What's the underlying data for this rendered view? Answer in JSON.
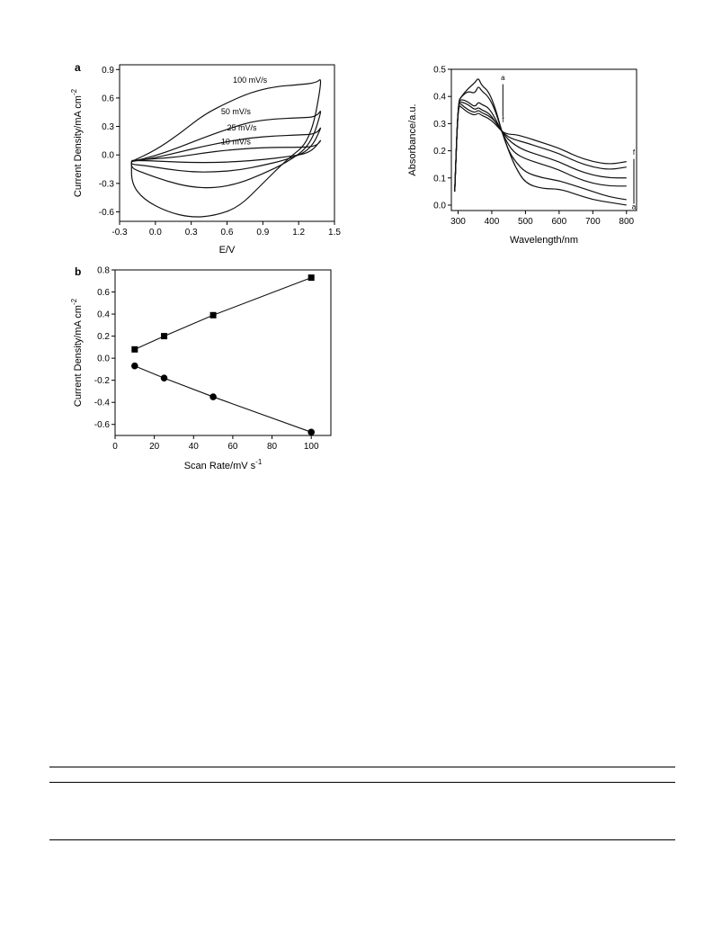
{
  "chart_data": [
    {
      "type": "line",
      "panel_label": "a",
      "xlabel": "E/V",
      "ylabel": "Current Density/mA cm",
      "ylabel_sup": "-2",
      "xlim": [
        -0.3,
        1.5
      ],
      "ylim": [
        -0.7,
        0.95
      ],
      "xticks": [
        -0.3,
        0.0,
        0.3,
        0.6,
        0.9,
        1.2,
        1.5
      ],
      "yticks": [
        -0.6,
        -0.3,
        0.0,
        0.3,
        0.6,
        0.9
      ],
      "xtick_labels": [
        "-0.3",
        "0.0",
        "0.3",
        "0.6",
        "0.9",
        "1.2",
        "1.5"
      ],
      "ytick_labels": [
        "-0.6",
        "-0.3",
        "0.0",
        "0.3",
        "0.6",
        "0.9"
      ],
      "series": [
        {
          "name": "100 mV/s",
          "upper": [
            [
              -0.2,
              -0.07
            ],
            [
              0.0,
              0.05
            ],
            [
              0.2,
              0.22
            ],
            [
              0.4,
              0.42
            ],
            [
              0.6,
              0.55
            ],
            [
              0.8,
              0.66
            ],
            [
              1.0,
              0.72
            ],
            [
              1.2,
              0.74
            ],
            [
              1.35,
              0.76
            ],
            [
              1.4,
              0.82
            ]
          ],
          "lower": [
            [
              1.4,
              0.82
            ],
            [
              1.3,
              0.15
            ],
            [
              1.1,
              -0.05
            ],
            [
              0.9,
              -0.3
            ],
            [
              0.7,
              -0.55
            ],
            [
              0.5,
              -0.64
            ],
            [
              0.3,
              -0.66
            ],
            [
              0.1,
              -0.6
            ],
            [
              -0.1,
              -0.47
            ],
            [
              -0.2,
              -0.3
            ]
          ]
        },
        {
          "name": "50 mV/s",
          "upper": [
            [
              -0.2,
              -0.07
            ],
            [
              0.0,
              -0.01
            ],
            [
              0.2,
              0.08
            ],
            [
              0.4,
              0.18
            ],
            [
              0.6,
              0.27
            ],
            [
              0.8,
              0.35
            ],
            [
              1.0,
              0.38
            ],
            [
              1.2,
              0.39
            ],
            [
              1.35,
              0.4
            ],
            [
              1.4,
              0.5
            ]
          ],
          "lower": [
            [
              1.4,
              0.5
            ],
            [
              1.3,
              0.1
            ],
            [
              1.1,
              -0.08
            ],
            [
              0.9,
              -0.2
            ],
            [
              0.7,
              -0.3
            ],
            [
              0.5,
              -0.35
            ],
            [
              0.3,
              -0.34
            ],
            [
              0.1,
              -0.28
            ],
            [
              -0.1,
              -0.19
            ],
            [
              -0.2,
              -0.14
            ]
          ]
        },
        {
          "name": "25 mV/s",
          "upper": [
            [
              -0.2,
              -0.07
            ],
            [
              0.0,
              -0.03
            ],
            [
              0.2,
              0.03
            ],
            [
              0.4,
              0.09
            ],
            [
              0.6,
              0.14
            ],
            [
              0.8,
              0.18
            ],
            [
              1.0,
              0.2
            ],
            [
              1.2,
              0.21
            ],
            [
              1.35,
              0.22
            ],
            [
              1.4,
              0.32
            ]
          ],
          "lower": [
            [
              1.4,
              0.32
            ],
            [
              1.3,
              0.05
            ],
            [
              1.1,
              -0.05
            ],
            [
              0.9,
              -0.11
            ],
            [
              0.7,
              -0.16
            ],
            [
              0.5,
              -0.18
            ],
            [
              0.3,
              -0.18
            ],
            [
              0.1,
              -0.15
            ],
            [
              -0.1,
              -0.11
            ],
            [
              -0.2,
              -0.1
            ]
          ]
        },
        {
          "name": "10 mV/s",
          "upper": [
            [
              -0.2,
              -0.06
            ],
            [
              0.0,
              -0.04
            ],
            [
              0.2,
              -0.02
            ],
            [
              0.4,
              0.02
            ],
            [
              0.6,
              0.05
            ],
            [
              0.8,
              0.07
            ],
            [
              1.0,
              0.08
            ],
            [
              1.2,
              0.08
            ],
            [
              1.35,
              0.09
            ],
            [
              1.4,
              0.18
            ]
          ],
          "lower": [
            [
              1.4,
              0.18
            ],
            [
              1.3,
              0.02
            ],
            [
              1.1,
              -0.02
            ],
            [
              0.9,
              -0.05
            ],
            [
              0.7,
              -0.07
            ],
            [
              0.5,
              -0.08
            ],
            [
              0.3,
              -0.08
            ],
            [
              0.1,
              -0.07
            ],
            [
              -0.1,
              -0.06
            ],
            [
              -0.2,
              -0.06
            ]
          ]
        }
      ]
    },
    {
      "type": "scatter",
      "panel_label": "b",
      "xlabel": "Scan Rate/mV s",
      "xlabel_sup": "-1",
      "ylabel": "Current Density/mA cm",
      "ylabel_sup": "-2",
      "xlim": [
        0,
        110
      ],
      "ylim": [
        -0.7,
        0.8
      ],
      "xticks": [
        0,
        20,
        40,
        60,
        80,
        100
      ],
      "yticks": [
        -0.6,
        -0.4,
        -0.2,
        0.0,
        0.2,
        0.4,
        0.6,
        0.8
      ],
      "xtick_labels": [
        "0",
        "20",
        "40",
        "60",
        "80",
        "100"
      ],
      "ytick_labels": [
        "-0.6",
        "-0.4",
        "-0.2",
        "0.0",
        "0.2",
        "0.4",
        "0.6",
        "0.8"
      ],
      "series": [
        {
          "marker": "square",
          "x": [
            10,
            25,
            50,
            100
          ],
          "y": [
            0.08,
            0.2,
            0.39,
            0.73
          ]
        },
        {
          "marker": "circle",
          "x": [
            10,
            25,
            50,
            100
          ],
          "y": [
            -0.07,
            -0.18,
            -0.35,
            -0.67
          ]
        }
      ]
    },
    {
      "type": "line",
      "xlabel": "Wavelength/nm",
      "ylabel": "Absorbance/a.u.",
      "xlim": [
        280,
        830
      ],
      "ylim": [
        -0.02,
        0.5
      ],
      "xticks": [
        300,
        400,
        500,
        600,
        700,
        800
      ],
      "yticks": [
        0.0,
        0.1,
        0.2,
        0.3,
        0.4,
        0.5
      ],
      "xtick_labels": [
        "300",
        "400",
        "500",
        "600",
        "700",
        "800"
      ],
      "ytick_labels": [
        "0.0",
        "0.1",
        "0.2",
        "0.3",
        "0.4",
        "0.5"
      ],
      "annotations": {
        "top_start": "a",
        "top_end": "f",
        "right_start": "f",
        "right_end": "a"
      },
      "series": [
        {
          "x": [
            290,
            300,
            310,
            330,
            350,
            360,
            370,
            390,
            410,
            430,
            450,
            470,
            500,
            550,
            600,
            650,
            700,
            750,
            800
          ],
          "y": [
            0.05,
            0.38,
            0.4,
            0.43,
            0.45,
            0.47,
            0.44,
            0.42,
            0.36,
            0.27,
            0.2,
            0.14,
            0.08,
            0.06,
            0.06,
            0.04,
            0.02,
            0.01,
            0.0
          ]
        },
        {
          "x": [
            290,
            300,
            310,
            330,
            350,
            360,
            370,
            390,
            410,
            430,
            450,
            470,
            500,
            550,
            600,
            650,
            700,
            750,
            800
          ],
          "y": [
            0.05,
            0.38,
            0.4,
            0.42,
            0.41,
            0.44,
            0.42,
            0.4,
            0.35,
            0.27,
            0.2,
            0.16,
            0.12,
            0.1,
            0.09,
            0.07,
            0.05,
            0.03,
            0.02
          ]
        },
        {
          "x": [
            290,
            300,
            310,
            330,
            350,
            360,
            370,
            390,
            410,
            430,
            450,
            470,
            500,
            550,
            600,
            650,
            700,
            750,
            800
          ],
          "y": [
            0.05,
            0.38,
            0.39,
            0.38,
            0.36,
            0.38,
            0.37,
            0.36,
            0.32,
            0.27,
            0.22,
            0.19,
            0.17,
            0.15,
            0.13,
            0.1,
            0.08,
            0.07,
            0.07
          ]
        },
        {
          "x": [
            290,
            300,
            310,
            330,
            350,
            360,
            370,
            390,
            410,
            430,
            450,
            470,
            500,
            550,
            600,
            650,
            700,
            750,
            800
          ],
          "y": [
            0.05,
            0.38,
            0.38,
            0.37,
            0.35,
            0.36,
            0.35,
            0.34,
            0.31,
            0.27,
            0.24,
            0.22,
            0.2,
            0.18,
            0.16,
            0.13,
            0.11,
            0.1,
            0.1
          ]
        },
        {
          "x": [
            290,
            300,
            310,
            330,
            350,
            360,
            370,
            390,
            410,
            430,
            450,
            470,
            500,
            550,
            600,
            650,
            700,
            750,
            800
          ],
          "y": [
            0.05,
            0.38,
            0.37,
            0.35,
            0.34,
            0.35,
            0.34,
            0.33,
            0.31,
            0.27,
            0.25,
            0.24,
            0.23,
            0.21,
            0.19,
            0.16,
            0.14,
            0.13,
            0.14
          ]
        },
        {
          "x": [
            290,
            300,
            310,
            330,
            350,
            360,
            370,
            390,
            410,
            430,
            450,
            470,
            500,
            550,
            600,
            650,
            700,
            750,
            800
          ],
          "y": [
            0.05,
            0.37,
            0.36,
            0.34,
            0.33,
            0.34,
            0.33,
            0.32,
            0.3,
            0.27,
            0.26,
            0.26,
            0.25,
            0.23,
            0.21,
            0.18,
            0.16,
            0.15,
            0.16
          ]
        }
      ]
    }
  ]
}
